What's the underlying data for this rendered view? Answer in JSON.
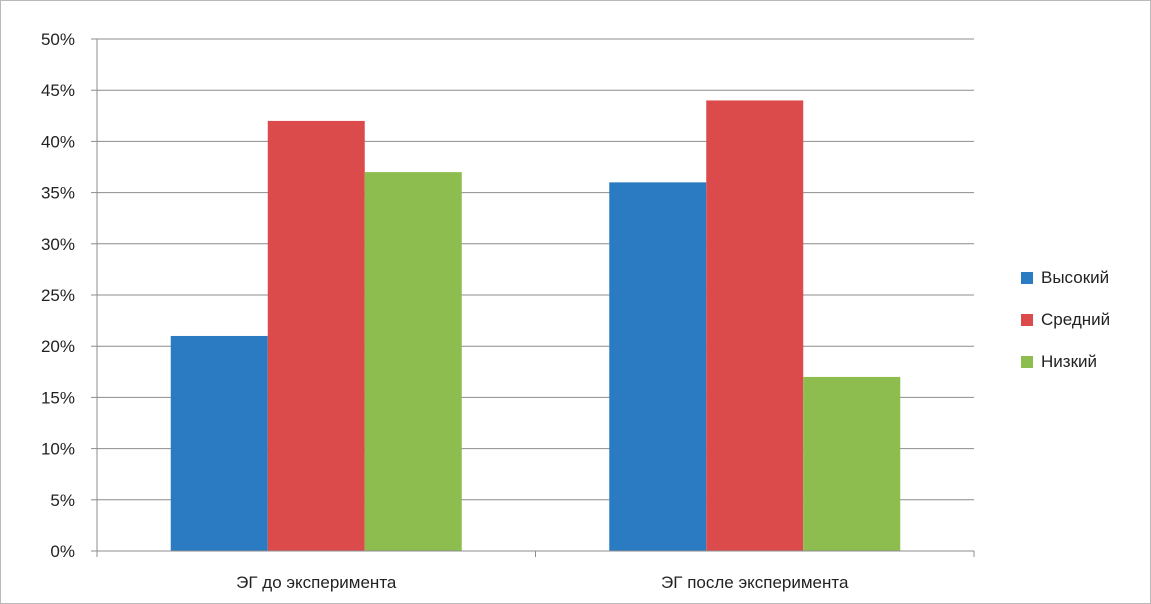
{
  "chart_data": {
    "type": "bar",
    "title": "",
    "xlabel": "",
    "ylabel": "",
    "categories": [
      "ЭГ до эксперимента",
      "ЭГ после эксперимента"
    ],
    "series": [
      {
        "name": "Высокий",
        "values": [
          21,
          36
        ],
        "color": "#2a7bc1"
      },
      {
        "name": "Средний",
        "values": [
          42,
          44
        ],
        "color": "#dc4b4b"
      },
      {
        "name": "Низкий",
        "values": [
          37,
          17
        ],
        "color": "#8cbd4e"
      }
    ],
    "ylim": [
      0,
      50
    ],
    "yticks": [
      0,
      5,
      10,
      15,
      20,
      25,
      30,
      35,
      40,
      45,
      50
    ],
    "ytick_labels": [
      "0%",
      "5%",
      "10%",
      "15%",
      "20%",
      "25%",
      "30%",
      "35%",
      "40%",
      "45%",
      "50%"
    ],
    "grid": true,
    "legend_position": "right"
  }
}
